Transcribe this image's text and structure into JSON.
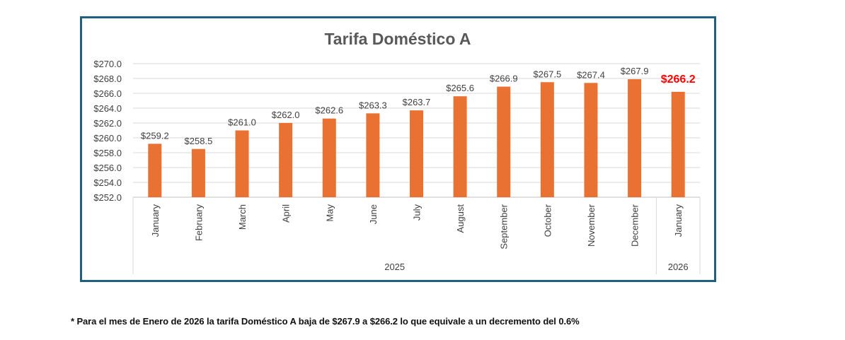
{
  "chart_data": {
    "type": "bar",
    "title": "Tarifa Doméstico A",
    "xlabel": "",
    "ylabel": "",
    "ylim": [
      252,
      270
    ],
    "yticks": [
      "$270.0",
      "$268.0",
      "$266.0",
      "$264.0",
      "$262.0",
      "$260.0",
      "$258.0",
      "$256.0",
      "$254.0",
      "$252.0"
    ],
    "ytick_values": [
      270,
      268,
      266,
      264,
      262,
      260,
      258,
      256,
      254,
      252
    ],
    "grid": true,
    "categories": [
      "January",
      "February",
      "March",
      "April",
      "May",
      "June",
      "July",
      "August",
      "September",
      "October",
      "November",
      "December",
      "January"
    ],
    "groups": [
      {
        "label": "2025",
        "count": 12
      },
      {
        "label": "2026",
        "count": 1
      }
    ],
    "values": [
      259.2,
      258.5,
      261.0,
      262.0,
      262.6,
      263.3,
      263.7,
      265.6,
      266.9,
      267.5,
      267.4,
      267.9,
      266.2
    ],
    "data_labels": [
      "$259.2",
      "$258.5",
      "$261.0",
      "$262.0",
      "$262.6",
      "$263.3",
      "$263.7",
      "$265.6",
      "$266.9",
      "$267.5",
      "$267.4",
      "$267.9",
      "$266.2"
    ],
    "highlight_index": 12,
    "colors": {
      "bar": "#e97132",
      "highlight_label": "#ff0000",
      "label": "#404040",
      "title": "#595959",
      "grid": "#d9d9d9",
      "border": "#1f5f7f"
    }
  },
  "footnote": "* Para el mes de Enero de 2026 la tarifa Doméstico A baja de $267.9 a $266.2 lo que equivale a un decremento del 0.6%"
}
